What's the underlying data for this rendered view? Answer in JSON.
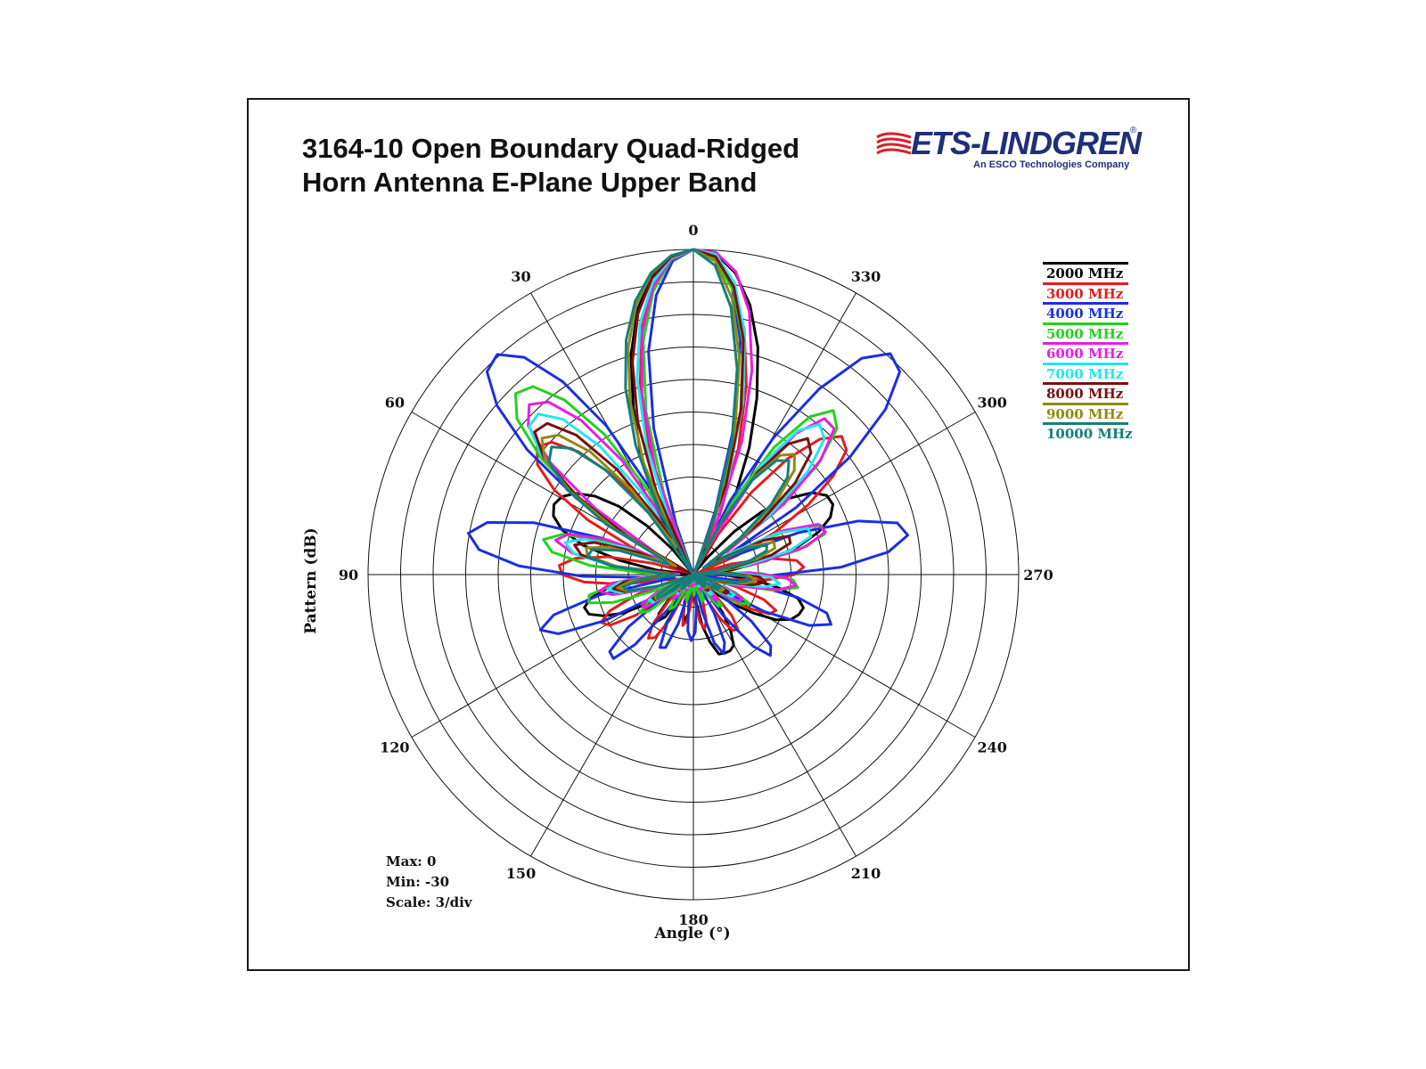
{
  "title": {
    "line1": "3164-10 Open Boundary Quad-Ridged",
    "line2": "Horn Antenna E-Plane Upper Band"
  },
  "logo": {
    "name": "ETS-LINDGREN",
    "tagline": "An ESCO Technologies Company",
    "color": "#1f2f7a",
    "accent_color": "#d71f2b"
  },
  "summary": {
    "max": "Max: 0",
    "min": "Min: -30",
    "scale": "Scale: 3/div"
  },
  "chart_data": {
    "type": "polar-line",
    "title": "3164-10 Open Boundary Quad-Ridged Horn Antenna E-Plane Upper Band",
    "xlabel": "Angle  (°)",
    "ylabel": "Pattern  (dB)",
    "r_range": [
      -30,
      0
    ],
    "r_step": 3,
    "angle_direction": "counterclockwise",
    "zero_position": "top",
    "angle_ticks": [
      0,
      30,
      60,
      90,
      120,
      150,
      180,
      210,
      240,
      270,
      300,
      330
    ],
    "grid": true,
    "legend_position": "top-right",
    "series": [
      {
        "name": "2000 MHz",
        "color": "#000000",
        "values": [
          0,
          -0.6,
          -2.2,
          -5.0,
          -8.9,
          -13.6,
          -18.0,
          -22.3,
          -26.5,
          -29.9,
          -26.9,
          -23.8,
          -20.7,
          -18.4,
          -16.8,
          -15.9,
          -15.6,
          -16.0,
          -17.2,
          -19.5,
          -23.1,
          -26.6,
          -29.9,
          -27.3,
          -24.5,
          -22.0,
          -20.3,
          -19.5,
          -19.7,
          -20.9,
          -22.6,
          -25.1,
          -28.4,
          -29.5,
          -27.0,
          -25.2,
          -24.6,
          -25.3,
          -27.5,
          -29.8,
          -29.5,
          -27.3,
          -26.2,
          -25.6,
          -26.8,
          -29.6,
          -30.0,
          -27.4,
          -25.2,
          -23.6,
          -22.3,
          -22.2,
          -22.2,
          -22.5,
          -23.8,
          -25.6,
          -27.8,
          -29.5,
          -27.5,
          -25.4,
          -23.4,
          -21.3,
          -20.1,
          -19.6,
          -19.4,
          -20.1,
          -22.0,
          -24.4,
          -27.0,
          -29.8,
          -26.4,
          -23.1,
          -20.1,
          -17.8,
          -16.3,
          -15.6,
          -15.7,
          -16.7,
          -18.7,
          -21.4,
          -24.5,
          -27.9,
          -29.6,
          -25.7,
          -21.6,
          -17.2,
          -12.7,
          -8.2,
          -4.6,
          -1.9,
          -0.3,
          0
        ]
      },
      {
        "name": "3000 MHz",
        "color": "#e41c1c",
        "values": [
          0,
          -0.8,
          -3.0,
          -6.7,
          -11.8,
          -17.9,
          -24.2,
          -29.7,
          -26.5,
          -22.4,
          -18.1,
          -14.5,
          -12.1,
          -11.4,
          -12.4,
          -15.0,
          -19.0,
          -24.1,
          -29.5,
          -26.2,
          -21.9,
          -19.0,
          -17.6,
          -17.9,
          -19.9,
          -23.4,
          -28.0,
          -28.5,
          -24.4,
          -21.6,
          -20.4,
          -21.0,
          -23.5,
          -27.5,
          -29.8,
          -26.6,
          -24.0,
          -22.8,
          -23.2,
          -25.3,
          -28.8,
          -29.1,
          -26.6,
          -25.2,
          -25.7,
          -27.7,
          -29.9,
          -27.4,
          -25.6,
          -24.9,
          -25.6,
          -27.4,
          -29.8,
          -27.6,
          -25.3,
          -23.7,
          -23.5,
          -24.8,
          -27.4,
          -29.8,
          -26.7,
          -24.0,
          -22.1,
          -21.7,
          -23.1,
          -26.0,
          -29.6,
          -26.5,
          -23.1,
          -20.7,
          -19.8,
          -20.4,
          -22.7,
          -26.3,
          -29.9,
          -25.7,
          -21.5,
          -17.6,
          -14.2,
          -11.8,
          -11.3,
          -12.9,
          -16.2,
          -20.7,
          -25.9,
          -29.6,
          -23.7,
          -17.6,
          -11.9,
          -6.9,
          -3.1,
          -0.8,
          0
        ]
      },
      {
        "name": "4000 MHz",
        "color": "#1b2fe0",
        "values": [
          0,
          -1.0,
          -4.0,
          -9.0,
          -16.0,
          -25.0,
          -29.6,
          -21.2,
          -14.1,
          -8.5,
          -4.6,
          -2.8,
          -3.3,
          -6.1,
          -10.8,
          -17.1,
          -24.3,
          -29.1,
          -21.0,
          -14.5,
          -10.4,
          -8.9,
          -10.1,
          -13.9,
          -19.8,
          -26.6,
          -28.2,
          -21.1,
          -16.6,
          -15.0,
          -16.4,
          -20.8,
          -27.1,
          -27.9,
          -22.3,
          -19.5,
          -19.3,
          -21.6,
          -26.1,
          -29.8,
          -24.9,
          -22.6,
          -22.8,
          -25.3,
          -29.6,
          -27.4,
          -24.8,
          -23.9,
          -24.7,
          -27.2,
          -29.8,
          -26.5,
          -23.4,
          -22.2,
          -23.1,
          -26.0,
          -29.7,
          -25.4,
          -21.4,
          -19.7,
          -20.3,
          -23.1,
          -27.5,
          -28.3,
          -22.6,
          -18.3,
          -16.5,
          -17.2,
          -20.2,
          -25.1,
          -29.9,
          -23.1,
          -16.4,
          -11.9,
          -9.9,
          -10.6,
          -14.0,
          -19.6,
          -26.5,
          -26.5,
          -18.7,
          -11.9,
          -6.6,
          -3.3,
          -2.7,
          -4.7,
          -9.3,
          -15.4,
          -22.3,
          -29.2,
          -23.8,
          -15.1,
          -8.0,
          -3.1,
          -0.5,
          0
        ]
      },
      {
        "name": "5000 MHz",
        "color": "#22d21c",
        "values": [
          0,
          -0.9,
          -3.6,
          -8.0,
          -14.3,
          -22.2,
          -28.9,
          -21.1,
          -14.7,
          -10.0,
          -7.2,
          -6.6,
          -8.3,
          -12.3,
          -18.0,
          -24.7,
          -28.0,
          -21.7,
          -17.4,
          -15.8,
          -16.8,
          -20.4,
          -26.0,
          -27.4,
          -22.7,
          -20.2,
          -20.0,
          -22.2,
          -26.5,
          -28.6,
          -25.1,
          -23.9,
          -24.7,
          -27.7,
          -29.5,
          -27.2,
          -26.1,
          -26.6,
          -28.7,
          -29.4,
          -27.8,
          -27.5,
          -28.4,
          -29.9,
          -28.8,
          -28.1,
          -28.8,
          -29.9,
          -28.5,
          -27.4,
          -27.5,
          -28.7,
          -29.9,
          -27.8,
          -26.3,
          -26.1,
          -27.6,
          -29.8,
          -27.0,
          -24.8,
          -24.2,
          -25.8,
          -29.3,
          -26.8,
          -22.5,
          -20.3,
          -20.8,
          -23.8,
          -28.9,
          -25.4,
          -20.0,
          -17.3,
          -17.4,
          -20.5,
          -26.0,
          -27.9,
          -20.7,
          -14.7,
          -11.1,
          -10.1,
          -11.9,
          -16.1,
          -22.2,
          -29.1,
          -22.0,
          -14.4,
          -8.2,
          -3.6,
          -0.9,
          0
        ]
      },
      {
        "name": "6000 MHz",
        "color": "#e81ee0",
        "values": [
          0,
          -0.8,
          -3.2,
          -7.2,
          -12.8,
          -19.8,
          -27.9,
          -24.3,
          -17.6,
          -12.4,
          -9.2,
          -8.2,
          -9.5,
          -13.3,
          -19.1,
          -26.0,
          -27.3,
          -21.4,
          -17.9,
          -16.9,
          -18.7,
          -22.9,
          -28.7,
          -25.9,
          -22.4,
          -21.2,
          -22.3,
          -25.7,
          -29.8,
          -26.3,
          -24.5,
          -24.6,
          -26.6,
          -29.8,
          -28.1,
          -27.1,
          -27.6,
          -29.5,
          -29.3,
          -28.4,
          -28.8,
          -29.9,
          -29.4,
          -28.9,
          -29.2,
          -29.9,
          -29.5,
          -29.1,
          -29.4,
          -29.9,
          -29.2,
          -28.3,
          -28.6,
          -29.9,
          -28.4,
          -26.9,
          -26.8,
          -28.4,
          -29.6,
          -26.8,
          -25.1,
          -25.0,
          -26.7,
          -29.8,
          -25.5,
          -22.0,
          -20.5,
          -21.4,
          -24.8,
          -29.6,
          -24.0,
          -19.3,
          -17.2,
          -17.6,
          -20.7,
          -26.1,
          -26.3,
          -19.4,
          -14.2,
          -11.3,
          -11.2,
          -13.9,
          -19.5,
          -26.9,
          -24.7,
          -16.9,
          -10.4,
          -5.2,
          -1.8,
          -0.2,
          0
        ]
      },
      {
        "name": "7000 MHz",
        "color": "#22e6ee",
        "values": [
          0,
          -0.7,
          -2.8,
          -6.3,
          -11.2,
          -17.4,
          -24.7,
          -28.3,
          -21.3,
          -15.4,
          -11.3,
          -9.4,
          -9.6,
          -12.3,
          -17.1,
          -23.3,
          -29.2,
          -23.5,
          -19.4,
          -17.8,
          -18.8,
          -22.4,
          -27.9,
          -26.4,
          -23.1,
          -22.0,
          -23.1,
          -26.3,
          -29.9,
          -26.9,
          -25.3,
          -25.4,
          -27.3,
          -29.9,
          -28.5,
          -27.7,
          -28.2,
          -29.8,
          -29.4,
          -28.7,
          -29.1,
          -29.9,
          -29.6,
          -29.3,
          -29.6,
          -29.9,
          -29.7,
          -29.4,
          -29.6,
          -29.9,
          -29.5,
          -28.8,
          -29.0,
          -29.9,
          -28.8,
          -27.6,
          -27.5,
          -28.8,
          -29.7,
          -27.4,
          -25.9,
          -25.8,
          -27.3,
          -29.9,
          -26.5,
          -23.4,
          -22.0,
          -22.8,
          -25.9,
          -29.8,
          -25.1,
          -20.8,
          -18.6,
          -18.6,
          -21.2,
          -26.0,
          -27.4,
          -21.0,
          -15.8,
          -12.6,
          -11.9,
          -13.6,
          -17.9,
          -24.2,
          -28.4,
          -20.6,
          -13.4,
          -7.2,
          -2.8,
          -0.4,
          0
        ]
      },
      {
        "name": "8000 MHz",
        "color": "#7a0f0f",
        "values": [
          0,
          -0.6,
          -2.4,
          -5.4,
          -9.6,
          -15.0,
          -21.6,
          -29.2,
          -24.4,
          -18.0,
          -13.2,
          -10.6,
          -10.3,
          -12.5,
          -17.0,
          -23.1,
          -29.6,
          -24.6,
          -20.4,
          -18.7,
          -19.5,
          -22.8,
          -28.1,
          -26.9,
          -23.6,
          -22.5,
          -23.5,
          -26.6,
          -29.9,
          -27.2,
          -25.7,
          -25.8,
          -27.6,
          -29.9,
          -28.7,
          -28.0,
          -28.5,
          -29.9,
          -29.5,
          -28.9,
          -29.3,
          -29.9,
          -29.7,
          -29.4,
          -29.7,
          -29.9,
          -29.8,
          -29.6,
          -29.7,
          -29.9,
          -29.6,
          -29.1,
          -29.3,
          -29.9,
          -29.1,
          -28.1,
          -28.0,
          -29.1,
          -29.8,
          -27.9,
          -26.5,
          -26.4,
          -27.7,
          -29.9,
          -27.3,
          -24.5,
          -23.3,
          -23.9,
          -26.6,
          -29.9,
          -26.3,
          -22.6,
          -20.6,
          -20.5,
          -22.8,
          -27.2,
          -27.7,
          -22.2,
          -17.4,
          -14.4,
          -13.6,
          -15.1,
          -18.9,
          -24.6,
          -28.9,
          -21.2,
          -14.0,
          -7.8,
          -3.2,
          -0.6,
          0
        ]
      },
      {
        "name": "9000 MHz",
        "color": "#8f8a12",
        "values": [
          0,
          -0.5,
          -2.0,
          -4.6,
          -8.2,
          -12.9,
          -18.7,
          -25.6,
          -27.0,
          -20.4,
          -15.2,
          -12.1,
          -11.2,
          -12.6,
          -16.3,
          -21.7,
          -28.2,
          -26.2,
          -21.8,
          -19.8,
          -20.1,
          -22.9,
          -27.8,
          -27.6,
          -24.2,
          -22.9,
          -23.7,
          -26.6,
          -29.9,
          -27.4,
          -25.9,
          -25.9,
          -27.7,
          -29.9,
          -28.8,
          -28.1,
          -28.6,
          -29.9,
          -29.6,
          -29.0,
          -29.4,
          -29.9,
          -29.7,
          -29.5,
          -29.7,
          -29.9,
          -29.8,
          -29.6,
          -29.8,
          -29.9,
          -29.7,
          -29.2,
          -29.4,
          -29.9,
          -29.2,
          -28.4,
          -28.3,
          -29.3,
          -29.9,
          -28.3,
          -27.0,
          -26.9,
          -28.1,
          -29.9,
          -27.8,
          -25.3,
          -24.2,
          -24.7,
          -27.1,
          -29.9,
          -27.1,
          -23.9,
          -22.1,
          -22.0,
          -24.0,
          -28.0,
          -28.4,
          -23.8,
          -19.5,
          -16.6,
          -15.5,
          -16.4,
          -19.4,
          -24.2,
          -29.9,
          -23.6,
          -16.1,
          -9.6,
          -4.3,
          -1.0,
          0
        ]
      },
      {
        "name": "10000 MHz",
        "color": "#12807c",
        "values": [
          0,
          -0.5,
          -1.9,
          -4.2,
          -7.5,
          -11.7,
          -16.9,
          -23.0,
          -29.8,
          -23.0,
          -17.4,
          -13.8,
          -12.4,
          -13.1,
          -15.9,
          -20.7,
          -27.1,
          -27.5,
          -22.8,
          -20.4,
          -20.1,
          -22.4,
          -27.0,
          -28.5,
          -25.0,
          -23.4,
          -23.8,
          -26.4,
          -29.9,
          -27.8,
          -26.2,
          -26.0,
          -27.6,
          -29.9,
          -29.0,
          -28.3,
          -28.7,
          -29.9,
          -29.6,
          -29.1,
          -29.5,
          -29.9,
          -29.8,
          -29.6,
          -29.8,
          -29.9,
          -29.8,
          -29.7,
          -29.8,
          -29.9,
          -29.7,
          -29.3,
          -29.5,
          -29.9,
          -29.3,
          -28.6,
          -28.5,
          -29.4,
          -29.9,
          -28.6,
          -27.4,
          -27.3,
          -28.3,
          -29.9,
          -28.2,
          -25.9,
          -24.8,
          -25.2,
          -27.4,
          -29.9,
          -27.6,
          -24.6,
          -22.9,
          -22.7,
          -24.5,
          -28.2,
          -28.9,
          -24.6,
          -20.4,
          -17.5,
          -16.3,
          -17.0,
          -19.7,
          -24.3,
          -29.9,
          -24.4,
          -17.1,
          -10.6,
          -5.1,
          -1.4,
          0
        ]
      }
    ]
  }
}
